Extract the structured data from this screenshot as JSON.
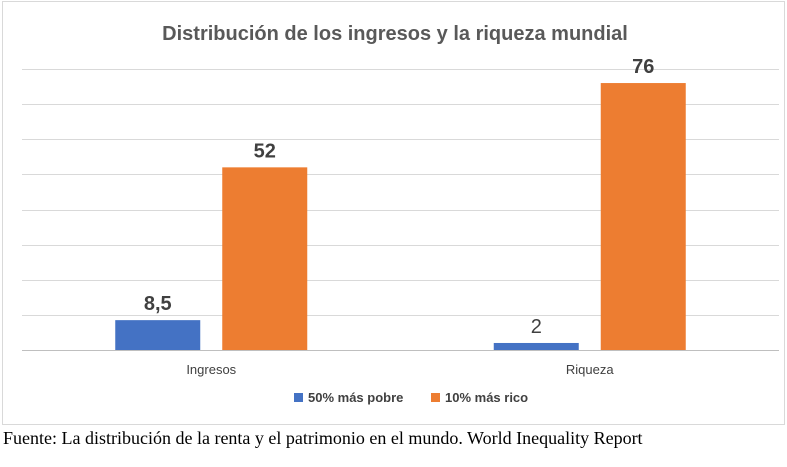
{
  "chart_data": {
    "type": "bar",
    "title": "Distribución de los ingresos y la riqueza mundial",
    "categories": [
      "Ingresos",
      "Riqueza"
    ],
    "series": [
      {
        "name": "50% más pobre",
        "values": [
          8.5,
          2
        ],
        "labels": [
          "8,5",
          "2"
        ],
        "color": "#4472c4"
      },
      {
        "name": "10% más rico",
        "values": [
          52,
          76
        ],
        "labels": [
          "52",
          "76"
        ],
        "color": "#ed7d31"
      }
    ],
    "ylim": [
      0,
      80
    ],
    "grid": true,
    "legend_position": "bottom"
  },
  "source_note": "Fuente: La distribución de la renta y el patrimonio en el mundo. World Inequality Report"
}
